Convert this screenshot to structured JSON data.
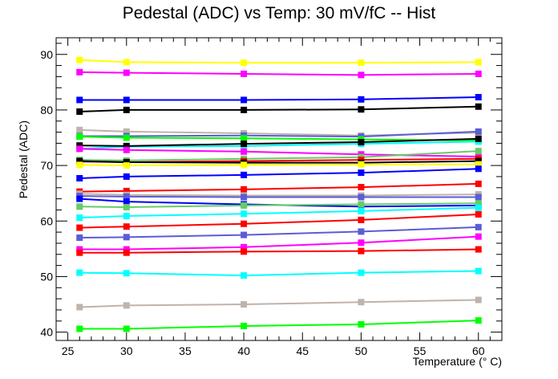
{
  "chart_data": {
    "type": "line",
    "title": "Pedestal (ADC) vs Temp: 30 mV/fC -- Hist",
    "xlabel": "Temperature (° C)",
    "ylabel": "Pedestal (ADC)",
    "xlim": [
      24,
      62
    ],
    "ylim": [
      38.5,
      93
    ],
    "xticks": [
      25,
      30,
      35,
      40,
      45,
      50,
      55,
      60
    ],
    "yticks": [
      40,
      50,
      60,
      70,
      80,
      90
    ],
    "grid": false,
    "x": [
      26,
      30,
      40,
      50,
      60
    ],
    "series": [
      {
        "color": "#ffff00",
        "values": [
          89.0,
          88.6,
          88.5,
          88.5,
          88.6
        ]
      },
      {
        "color": "#ff00ff",
        "values": [
          86.8,
          86.7,
          86.5,
          86.3,
          86.5
        ]
      },
      {
        "color": "#0000ff",
        "values": [
          81.8,
          81.8,
          81.8,
          81.9,
          82.3
        ]
      },
      {
        "color": "#000000",
        "values": [
          79.7,
          80.0,
          80.0,
          80.1,
          80.6
        ]
      },
      {
        "color": "#bfb3ab",
        "values": [
          76.4,
          76.1,
          75.8,
          75.4,
          75.9
        ]
      },
      {
        "color": "#5c5cd6",
        "values": [
          75.3,
          75.3,
          75.4,
          75.2,
          76.1
        ]
      },
      {
        "color": "#00ff00",
        "values": [
          75.2,
          75.0,
          74.9,
          74.7,
          74.5
        ]
      },
      {
        "color": "#00ffff",
        "values": [
          73.0,
          73.4,
          73.5,
          73.9,
          74.3
        ]
      },
      {
        "color": "#000000",
        "values": [
          73.6,
          73.5,
          73.9,
          74.2,
          74.8
        ]
      },
      {
        "color": "#ff00ff",
        "values": [
          73.0,
          72.8,
          72.5,
          72.0,
          71.6
        ]
      },
      {
        "color": "#66cc66",
        "values": [
          71.0,
          70.9,
          71.2,
          71.5,
          72.6
        ]
      },
      {
        "color": "#ff0000",
        "values": [
          70.7,
          70.6,
          70.8,
          71.0,
          71.2
        ]
      },
      {
        "color": "#000000",
        "values": [
          70.8,
          70.6,
          70.5,
          70.5,
          70.8
        ]
      },
      {
        "color": "#ffff00",
        "values": [
          70.1,
          70.0,
          70.1,
          70.2,
          70.2
        ]
      },
      {
        "color": "#0000ff",
        "values": [
          67.7,
          68.0,
          68.3,
          68.7,
          69.4
        ]
      },
      {
        "color": "#ff0000",
        "values": [
          65.3,
          65.4,
          65.7,
          66.1,
          66.7
        ]
      },
      {
        "color": "#bfb3ab",
        "values": [
          64.9,
          64.7,
          64.6,
          64.6,
          64.8
        ]
      },
      {
        "color": "#5c5cd6",
        "values": [
          64.5,
          64.4,
          64.3,
          64.3,
          64.3
        ]
      },
      {
        "color": "#0000ff",
        "values": [
          64.0,
          63.5,
          63.0,
          62.6,
          62.8
        ]
      },
      {
        "color": "#66cc66",
        "values": [
          62.6,
          62.5,
          62.8,
          63.0,
          63.2
        ]
      },
      {
        "color": "#00ffff",
        "values": [
          60.6,
          60.9,
          61.3,
          61.8,
          62.4
        ]
      },
      {
        "color": "#ff0000",
        "values": [
          58.8,
          59.0,
          59.5,
          60.2,
          61.2
        ]
      },
      {
        "color": "#5c5cd6",
        "values": [
          57.0,
          57.1,
          57.5,
          58.1,
          58.9
        ]
      },
      {
        "color": "#ff00ff",
        "values": [
          54.9,
          54.9,
          55.3,
          56.1,
          57.2
        ]
      },
      {
        "color": "#ff0000",
        "values": [
          54.3,
          54.3,
          54.5,
          54.6,
          54.9
        ]
      },
      {
        "color": "#00ffff",
        "values": [
          50.7,
          50.6,
          50.2,
          50.7,
          51.0
        ]
      },
      {
        "color": "#bfb3ab",
        "values": [
          44.5,
          44.8,
          45.0,
          45.4,
          45.8
        ]
      },
      {
        "color": "#00ff00",
        "values": [
          40.6,
          40.6,
          41.1,
          41.4,
          42.1
        ]
      }
    ]
  }
}
